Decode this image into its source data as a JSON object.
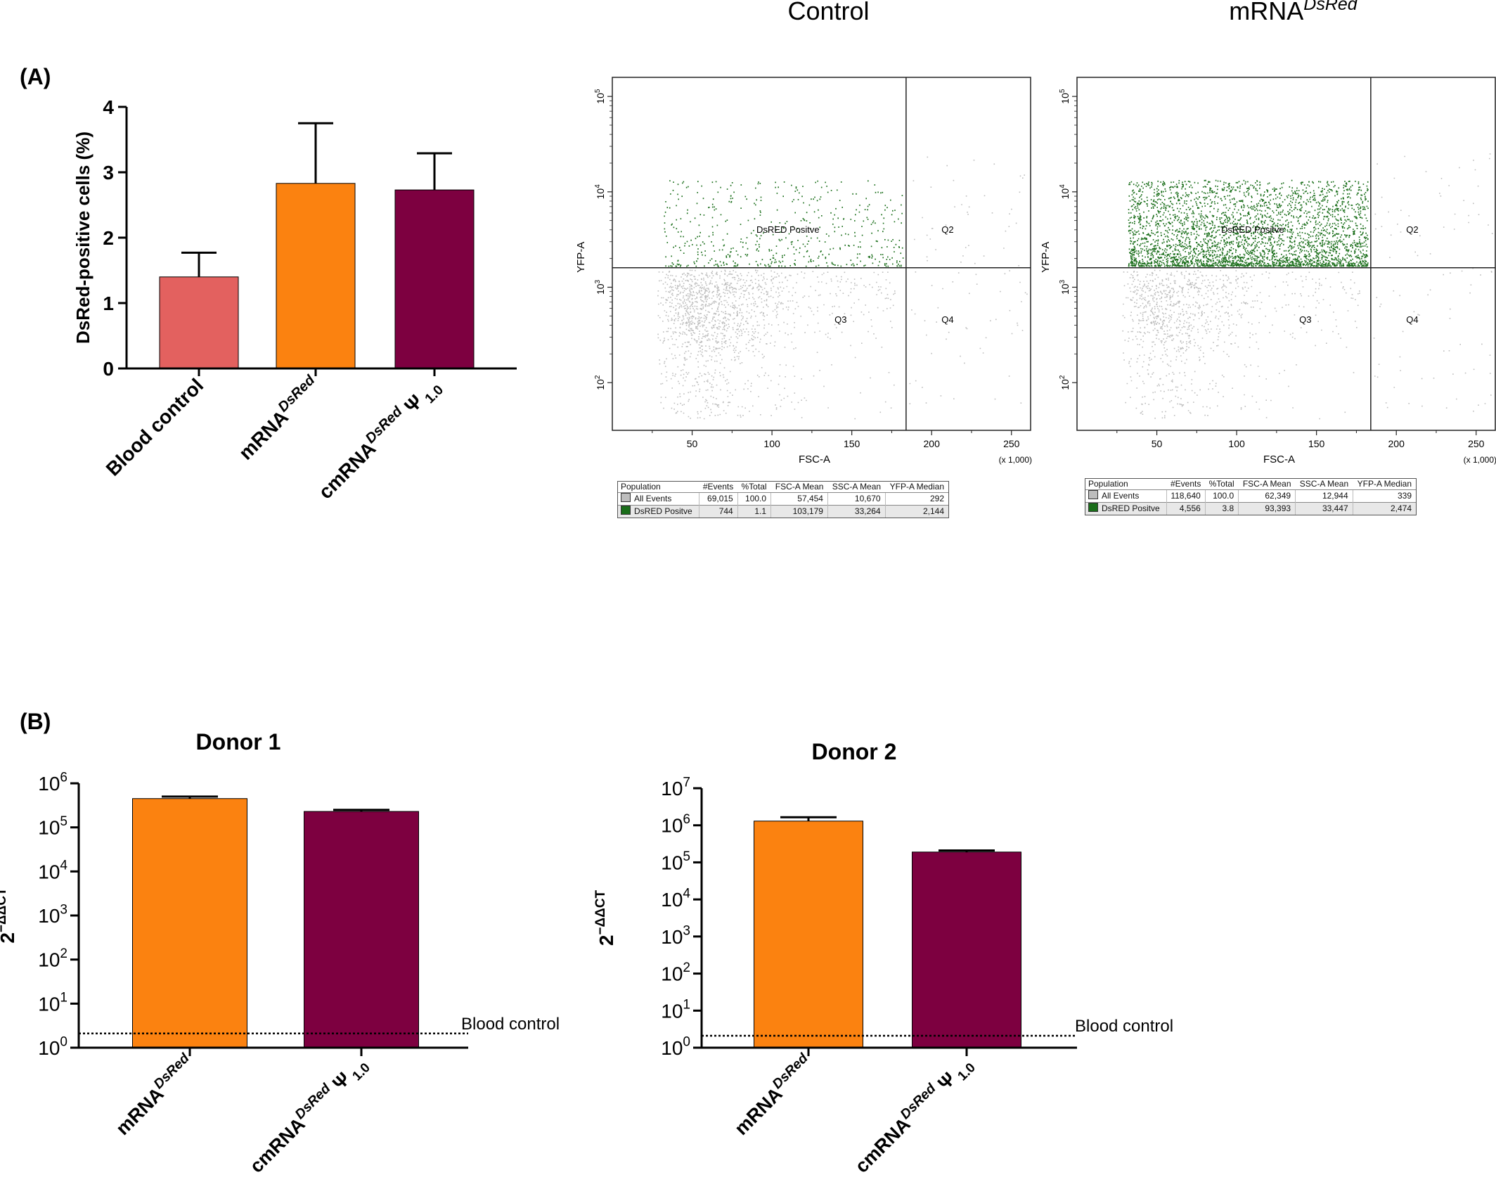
{
  "panel_labels": {
    "a": "(A)",
    "b": "(B)"
  },
  "colors": {
    "blood_control": "#e3615f",
    "mrna": "#fb8210",
    "cmrna": "#7d0040",
    "dsred_dots": "#1a6e1a",
    "all_dots": "#bdbdbd"
  },
  "chart_data": [
    {
      "id": "panel-a-bar",
      "type": "bar",
      "title": "",
      "ylabel": "DsRed-positive cells (%)",
      "ylim": [
        0,
        4
      ],
      "yticks": [
        "0",
        "1",
        "2",
        "3",
        "4"
      ],
      "categories": [
        "Blood control",
        "mRNA DsRed",
        "cmRNA DsRed Ψ 1.0"
      ],
      "category_labels": [
        {
          "base": "Blood control",
          "sup": "",
          "tail": ""
        },
        {
          "base": "mRNA",
          "sup": "DsRed",
          "tail": ""
        },
        {
          "base": "cmRNA",
          "sup": "DsRed",
          "tail": " Ψ 1.0"
        }
      ],
      "values": [
        1.4,
        2.83,
        2.73
      ],
      "errors": [
        0.37,
        0.92,
        0.56
      ]
    },
    {
      "id": "flow-control",
      "type": "scatter",
      "title": "Control",
      "title_sup": "",
      "xlabel": "FSC-A",
      "x_unit": "(x 1,000)",
      "ylabel": "YFP-A",
      "x_ticks": [
        50,
        100,
        150,
        200,
        250
      ],
      "xlim": [
        0,
        262
      ],
      "ylim_log10": [
        1.5,
        5.2
      ],
      "y_ticks_exp": [
        2,
        3,
        4,
        5
      ],
      "y_tick_base": "10",
      "gate_x": 184,
      "gate_y": 1600,
      "quadrant_labels": {
        "q1": "DsRED Positve",
        "q2": "Q2",
        "q3": "Q3",
        "q4": "Q4"
      },
      "table": {
        "headers": [
          "Population",
          "#Events",
          "%Total",
          "FSC-A Mean",
          "SSC-A Mean",
          "YFP-A Median"
        ],
        "rows": [
          [
            "All Events",
            "69,015",
            "100.0",
            "57,454",
            "10,670",
            "292"
          ],
          [
            "DsRED Positve",
            "744",
            "1.1",
            "103,179",
            "33,264",
            "2,144"
          ]
        ]
      }
    },
    {
      "id": "flow-mrna",
      "type": "scatter",
      "title": "mRNA",
      "title_sup": "DsRed",
      "xlabel": "FSC-A",
      "x_unit": "(x 1,000)",
      "ylabel": "YFP-A",
      "x_ticks": [
        50,
        100,
        150,
        200,
        250
      ],
      "xlim": [
        0,
        262
      ],
      "ylim_log10": [
        1.5,
        5.2
      ],
      "y_ticks_exp": [
        2,
        3,
        4,
        5
      ],
      "y_tick_base": "10",
      "gate_x": 184,
      "gate_y": 1600,
      "quadrant_labels": {
        "q1": "DsRED Positve",
        "q2": "Q2",
        "q3": "Q3",
        "q4": "Q4"
      },
      "table": {
        "headers": [
          "Population",
          "#Events",
          "%Total",
          "FSC-A Mean",
          "SSC-A Mean",
          "YFP-A Median"
        ],
        "rows": [
          [
            "All Events",
            "118,640",
            "100.0",
            "62,349",
            "12,944",
            "339"
          ],
          [
            "DsRED Positve",
            "4,556",
            "3.8",
            "93,393",
            "33,447",
            "2,474"
          ]
        ]
      }
    },
    {
      "id": "donor1",
      "type": "bar",
      "title": "Donor 1",
      "ylabel": "2−ΔΔCT",
      "ylabel_parts": {
        "base": "2",
        "sup": "−ΔΔCT"
      },
      "y_scale": "log",
      "ylim_log10": [
        0,
        6
      ],
      "y_ticks_exp": [
        0,
        1,
        2,
        3,
        4,
        5,
        6
      ],
      "y_tick_base": "10",
      "categories": [
        "mRNA DsRed",
        "cmRNA DsRed Ψ 1.0"
      ],
      "category_labels": [
        {
          "base": "mRNA",
          "sup": "DsRed",
          "tail": ""
        },
        {
          "base": "cmRNA",
          "sup": "DsRed",
          "tail": "Ψ 1.0"
        }
      ],
      "values": [
        450000,
        230000
      ],
      "error_upper": [
        500000,
        250000
      ],
      "reference_line": {
        "label": "Blood control",
        "value": 2.1
      }
    },
    {
      "id": "donor2",
      "type": "bar",
      "title": "Donor 2",
      "ylabel": "2−ΔΔCT",
      "ylabel_parts": {
        "base": "2",
        "sup": "−ΔΔCT"
      },
      "y_scale": "log",
      "ylim_log10": [
        0,
        7
      ],
      "y_ticks_exp": [
        0,
        1,
        2,
        3,
        4,
        5,
        6,
        7
      ],
      "y_tick_base": "10",
      "categories": [
        "mRNA DsRed",
        "cmRNA DsRed Ψ 1.0"
      ],
      "category_labels": [
        {
          "base": "mRNA",
          "sup": "DsRed",
          "tail": ""
        },
        {
          "base": "cmRNA",
          "sup": "DsRed",
          "tail": "Ψ 1.0"
        }
      ],
      "values": [
        1300000,
        190000
      ],
      "error_upper": [
        1650000,
        210000
      ],
      "reference_line": {
        "label": "Blood control",
        "value": 2.1
      }
    }
  ]
}
